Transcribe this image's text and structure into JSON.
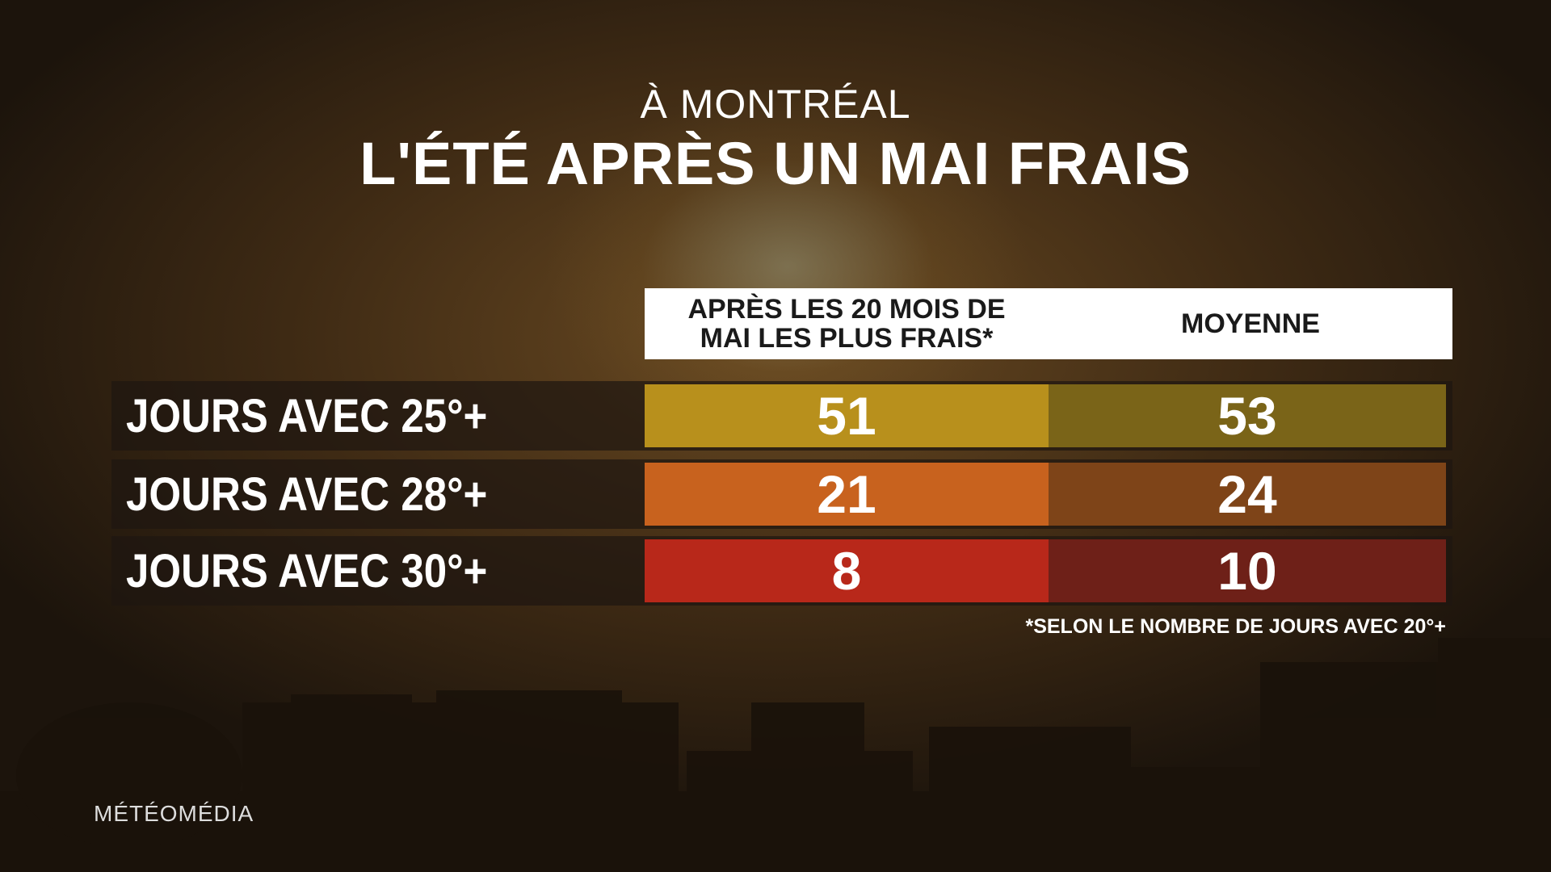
{
  "header": {
    "kicker": "À MONTRÉAL",
    "title": "L'ÉTÉ APRÈS UN MAI FRAIS"
  },
  "table": {
    "columns": [
      "APRÈS LES 20 MOIS DE MAI LES PLUS FRAIS*",
      "MOYENNE"
    ],
    "rows": [
      {
        "label": "JOURS AVEC 25°+",
        "values": [
          51,
          53
        ]
      },
      {
        "label": "JOURS AVEC 28°+",
        "values": [
          21,
          24
        ]
      },
      {
        "label": "JOURS AVEC 30°+",
        "values": [
          8,
          10
        ]
      }
    ]
  },
  "footnote": "*SELON LE NOMBRE DE JOURS AVEC 20°+",
  "brand": "MÉTÉOMÉDIA"
}
